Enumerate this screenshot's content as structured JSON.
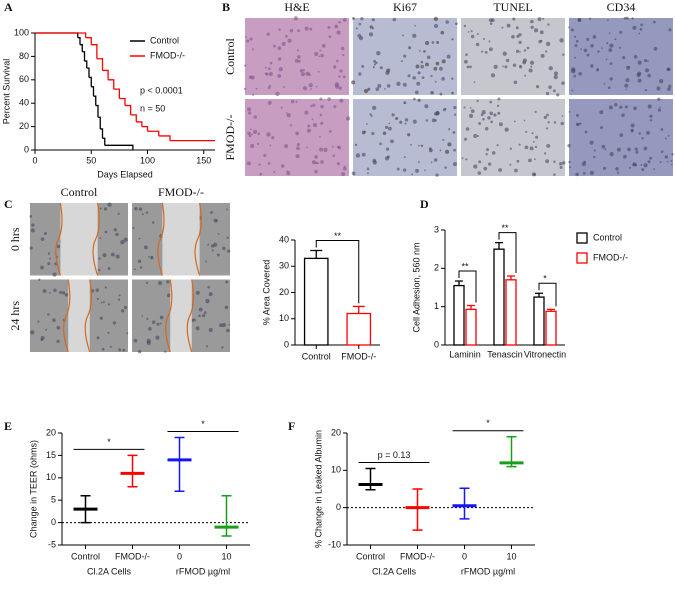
{
  "chart_data": [
    {
      "panel": "A",
      "type": "survival",
      "ylabel": "Percent Survival",
      "xlabel": "Days Elapsed",
      "xlim": [
        0,
        160
      ],
      "xticks": [
        0,
        50,
        100,
        150
      ],
      "ylim": [
        0,
        100
      ],
      "yticks": [
        0,
        20,
        40,
        60,
        80,
        100
      ],
      "series": [
        {
          "name": "Control",
          "color": "#000000",
          "x": [
            0,
            38,
            40,
            42,
            44,
            46,
            48,
            50,
            52,
            54,
            56,
            58,
            60,
            62,
            87
          ],
          "values": [
            100,
            96,
            90,
            84,
            76,
            70,
            62,
            54,
            46,
            38,
            28,
            18,
            10,
            4,
            0
          ]
        },
        {
          "name": "FMOD-/-",
          "color": "#ff0000",
          "x": [
            0,
            45,
            50,
            55,
            60,
            65,
            70,
            75,
            80,
            85,
            90,
            95,
            100,
            110,
            120,
            160
          ],
          "values": [
            100,
            96,
            90,
            78,
            68,
            60,
            52,
            44,
            38,
            30,
            24,
            20,
            16,
            12,
            8,
            8
          ]
        }
      ],
      "annotations": [
        "p < 0.0001",
        "n = 50"
      ],
      "legend": "upper right"
    },
    {
      "panel": "B",
      "type": "image-grid",
      "columns": [
        "H&E",
        "Ki67",
        "TUNEL",
        "CD34"
      ],
      "rows": [
        "Control",
        "FMOD-/-"
      ]
    },
    {
      "panel": "C",
      "type": "image-grid",
      "columns": [
        "Control",
        "FMOD-/-"
      ],
      "rows": [
        "0 hrs",
        "24 hrs"
      ]
    },
    {
      "type": "bar",
      "ylabel": "% Area Covered",
      "categories": [
        "Control",
        "FMOD-/-"
      ],
      "values": [
        33,
        12
      ],
      "errors": [
        3,
        2.7
      ],
      "colors": [
        "#000000",
        "#ff0000"
      ],
      "ylim": [
        0,
        40
      ],
      "yticks": [
        0,
        10,
        20,
        30,
        40
      ],
      "significance": [
        "**"
      ]
    },
    {
      "panel": "D",
      "type": "grouped-bar",
      "ylabel": "Cell Adhesion, 560 nm",
      "categories": [
        "Laminin",
        "Tenascin",
        "Vitronectin"
      ],
      "series": [
        {
          "name": "Control",
          "color": "#000000",
          "values": [
            1.55,
            2.5,
            1.25
          ],
          "errors": [
            0.12,
            0.17,
            0.1
          ]
        },
        {
          "name": "FMOD-/-",
          "color": "#ff0000",
          "values": [
            0.93,
            1.7,
            0.88
          ],
          "errors": [
            0.1,
            0.1,
            0.05
          ]
        }
      ],
      "ylim": [
        0,
        3
      ],
      "yticks": [
        0,
        1,
        2,
        3
      ],
      "significance": [
        "**",
        "**",
        "*"
      ],
      "legend": "upper right"
    },
    {
      "panel": "E",
      "type": "range",
      "ylabel": "Change in TEER (ohms)",
      "categories": [
        "Control",
        "FMOD-/-",
        "0",
        "10"
      ],
      "groups": [
        "Cl.2A Cells",
        "rFMOD µg/ml"
      ],
      "colors": [
        "#000000",
        "#ff0000",
        "#1515ff",
        "#1a9e1a"
      ],
      "values": [
        3,
        11,
        14,
        -1
      ],
      "low": [
        0,
        8,
        7,
        -3
      ],
      "high": [
        6,
        15,
        19,
        6
      ],
      "ylim": [
        -5,
        20
      ],
      "yticks": [
        -5,
        0,
        5,
        10,
        15,
        20
      ],
      "annotations": [
        "*",
        "*"
      ]
    },
    {
      "panel": "F",
      "type": "range",
      "ylabel": "% Change in Leaked Albumin",
      "categories": [
        "Control",
        "FMOD-/-",
        "0",
        "10"
      ],
      "groups": [
        "Cl.2A Cells",
        "rFMOD µg/ml"
      ],
      "colors": [
        "#000000",
        "#ff0000",
        "#1515ff",
        "#1a9e1a"
      ],
      "values": [
        6.2,
        0,
        0.5,
        12
      ],
      "low": [
        4.8,
        -6,
        -3,
        11
      ],
      "high": [
        10.5,
        5,
        5.2,
        19
      ],
      "ylim": [
        -10,
        20
      ],
      "yticks": [
        -10,
        0,
        10,
        20
      ],
      "annotations": [
        "p = 0.13",
        "*"
      ]
    }
  ]
}
